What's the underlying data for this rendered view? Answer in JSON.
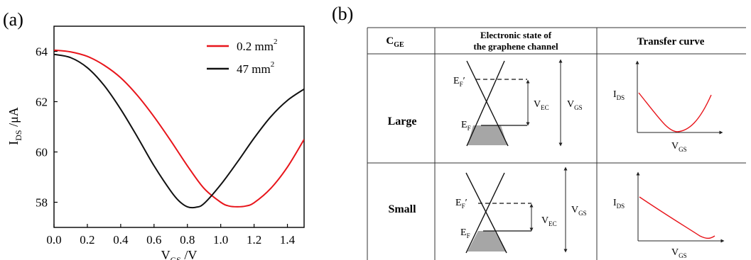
{
  "panel_a": {
    "label": "(a)",
    "chart_data": {
      "type": "line",
      "xlabel": "V",
      "xlabel_sub": "GS",
      "xlabel_unit": " /V",
      "ylabel": "I",
      "ylabel_sub": "DS",
      "ylabel_unit": " /μA",
      "xlim": [
        0.0,
        1.5
      ],
      "ylim": [
        57,
        65
      ],
      "xticks": [
        0.0,
        0.2,
        0.4,
        0.6,
        0.8,
        1.0,
        1.2,
        1.4
      ],
      "xtick_labels": [
        "0.0",
        "0.2",
        "0.4",
        "0.6",
        "0.8",
        "1.0",
        "1.2",
        "1.4"
      ],
      "yticks": [
        58,
        60,
        62,
        64
      ],
      "ytick_labels": [
        "58",
        "60",
        "62",
        "64"
      ],
      "grid": false,
      "legend_position": "top-right",
      "series": [
        {
          "name": "0.2 mm",
          "name_sup": "2",
          "color": "#e8151b",
          "x": [
            0.0,
            0.1,
            0.2,
            0.3,
            0.4,
            0.5,
            0.6,
            0.7,
            0.8,
            0.9,
            1.0,
            1.05,
            1.1,
            1.15,
            1.2,
            1.3,
            1.4,
            1.5
          ],
          "y": [
            64.05,
            63.98,
            63.8,
            63.45,
            62.95,
            62.25,
            61.4,
            60.45,
            59.45,
            58.55,
            58.0,
            57.85,
            57.82,
            57.85,
            57.98,
            58.55,
            59.4,
            60.5
          ]
        },
        {
          "name": "47 mm",
          "name_sup": "2",
          "color": "#111111",
          "x": [
            0.0,
            0.1,
            0.2,
            0.3,
            0.4,
            0.5,
            0.6,
            0.7,
            0.75,
            0.8,
            0.85,
            0.9,
            1.0,
            1.1,
            1.2,
            1.3,
            1.4,
            1.5
          ],
          "y": [
            63.88,
            63.75,
            63.35,
            62.65,
            61.7,
            60.6,
            59.45,
            58.45,
            58.05,
            57.82,
            57.8,
            57.95,
            58.7,
            59.6,
            60.55,
            61.4,
            62.05,
            62.5
          ]
        }
      ]
    }
  },
  "panel_b": {
    "label": "(b)",
    "header": {
      "col1": "C",
      "col1_sub": "GE",
      "col2_line1": "Electronic state of",
      "col2_line2": "the graphene channel",
      "col3": "Transfer curve"
    },
    "rows": [
      {
        "label": "Large",
        "ef_prime": "E",
        "ef_prime_sub": "F",
        "ef_prime_mark": "′",
        "ef": "E",
        "ef_sub": "F",
        "vec": "V",
        "vec_sub": "EC",
        "vgs": "V",
        "vgs_sub": "GS",
        "curve_y_label": "I",
        "curve_y_sub": "DS",
        "curve_x_label": "V",
        "curve_x_sub": "GS"
      },
      {
        "label": "Small",
        "ef_prime": "E",
        "ef_prime_sub": "F",
        "ef_prime_mark": "′",
        "ef": "E",
        "ef_sub": "F",
        "vec": "V",
        "vec_sub": "EC",
        "vgs": "V",
        "vgs_sub": "GS",
        "curve_y_label": "I",
        "curve_y_sub": "DS",
        "curve_x_label": "V",
        "curve_x_sub": "GS"
      }
    ],
    "colors": {
      "curve": "#e8151b",
      "fill": "#a6a6a6"
    }
  }
}
